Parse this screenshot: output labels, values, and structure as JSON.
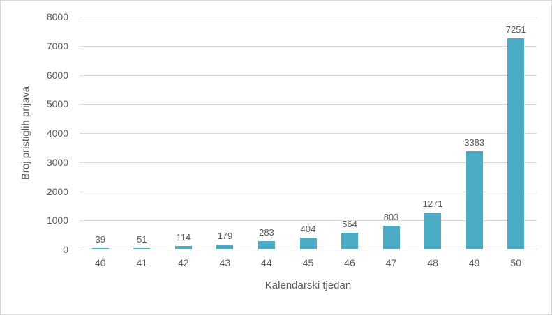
{
  "chart_data": {
    "type": "bar",
    "title": "",
    "categories": [
      "40",
      "41",
      "42",
      "43",
      "44",
      "45",
      "46",
      "47",
      "48",
      "49",
      "50"
    ],
    "values": [
      39,
      51,
      114,
      179,
      283,
      404,
      564,
      803,
      1271,
      3383,
      7251
    ],
    "data_labels_shown": true,
    "xlabel": "Kalendarski tjedan",
    "ylabel": "Broj pristiglih prijava",
    "ylim": [
      0,
      8000
    ],
    "yticks": [
      0,
      1000,
      2000,
      3000,
      4000,
      5000,
      6000,
      7000,
      8000
    ],
    "grid": true,
    "legend": "none",
    "colors": {
      "bar": "#4AACC5",
      "gridline": "#D9D9D9",
      "axis_line": "#BFBFBF",
      "text": "#595959",
      "background": "#FFFFFF",
      "border": "#D7D7D7"
    }
  }
}
